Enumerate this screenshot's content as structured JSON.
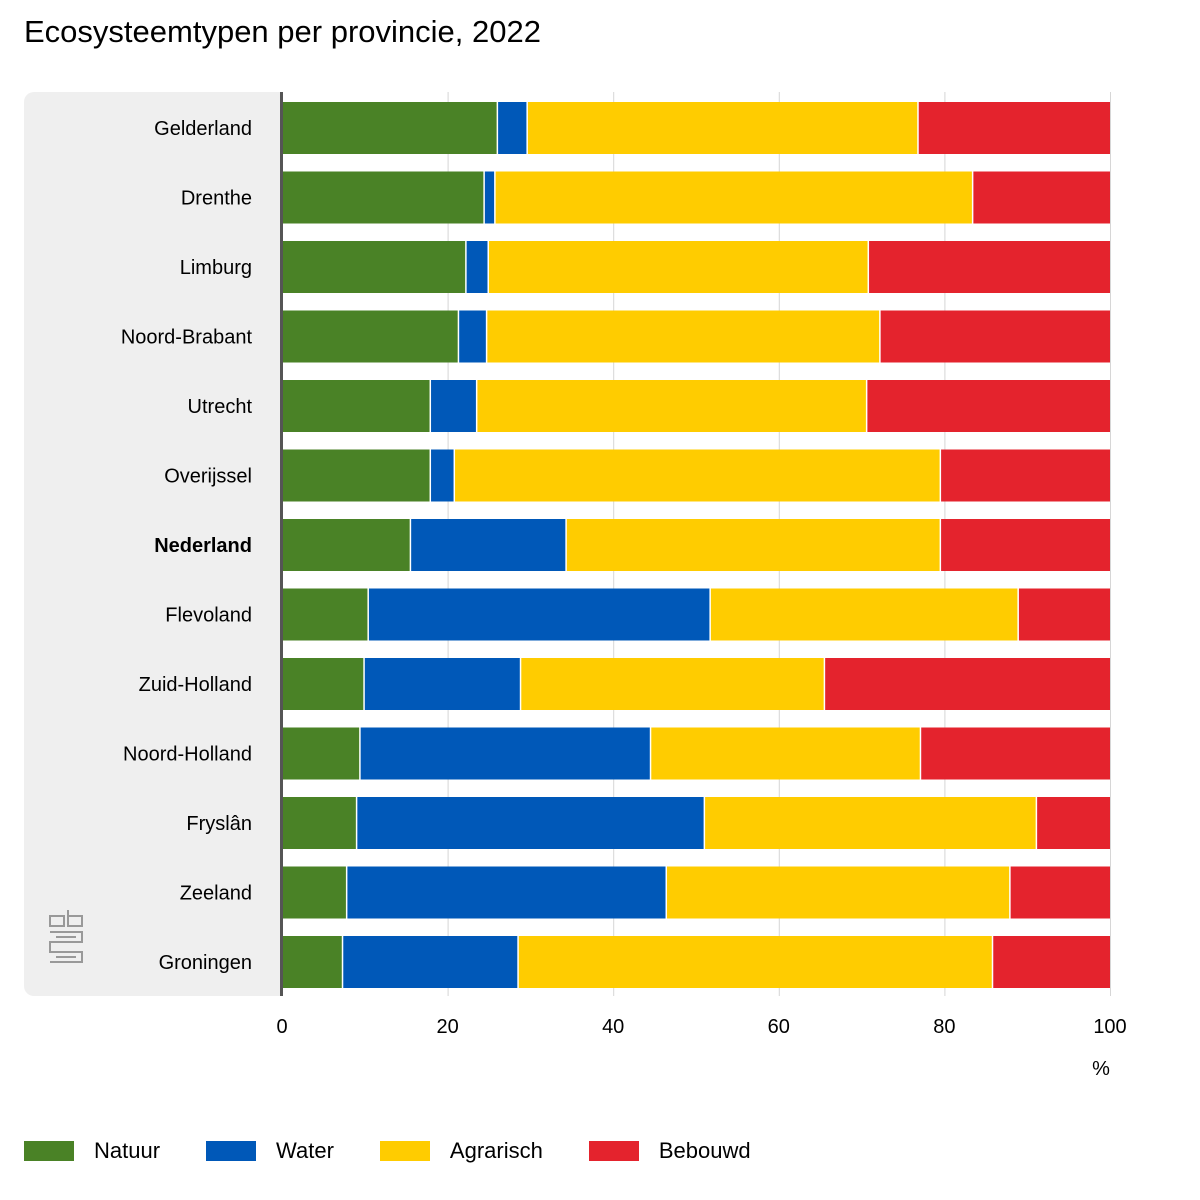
{
  "title": "Ecosysteemtypen per provincie, 2022",
  "chart_data": {
    "type": "bar",
    "orientation": "horizontal",
    "stacked": true,
    "title": "Ecosysteemtypen per provincie, 2022",
    "xlabel": "%",
    "xlim": [
      0,
      100
    ],
    "xticks": [
      "0",
      "20",
      "40",
      "60",
      "80",
      "100"
    ],
    "grid": true,
    "legend_placement": "bottom",
    "categories": [
      "Gelderland",
      "Drenthe",
      "Limburg",
      "Noord-Brabant",
      "Utrecht",
      "Overijssel",
      "Nederland",
      "Flevoland",
      "Zuid-Holland",
      "Noord-Holland",
      "Fryslân",
      "Zeeland",
      "Groningen"
    ],
    "highlight_category": "Nederland",
    "series": [
      {
        "name": "Natuur",
        "color": "#4a8226",
        "values": [
          26.1,
          24.5,
          22.3,
          21.4,
          18.0,
          18.0,
          15.6,
          10.5,
          10.0,
          9.5,
          9.1,
          7.9,
          7.4
        ]
      },
      {
        "name": "Water",
        "color": "#0058b8",
        "values": [
          3.6,
          1.3,
          2.7,
          3.4,
          5.6,
          2.9,
          18.8,
          41.3,
          18.9,
          35.1,
          42.0,
          38.6,
          21.2
        ]
      },
      {
        "name": "Agrarisch",
        "color": "#ffcc00",
        "values": [
          47.2,
          57.7,
          45.9,
          47.5,
          47.1,
          58.7,
          45.2,
          37.2,
          36.7,
          32.6,
          40.1,
          41.5,
          57.3
        ]
      },
      {
        "name": "Bebouwd",
        "color": "#e4232d",
        "values": [
          23.1,
          16.5,
          29.1,
          27.7,
          29.3,
          20.4,
          20.4,
          11.0,
          34.4,
          22.8,
          8.8,
          12.0,
          14.1
        ]
      }
    ]
  },
  "logo": "cbs"
}
